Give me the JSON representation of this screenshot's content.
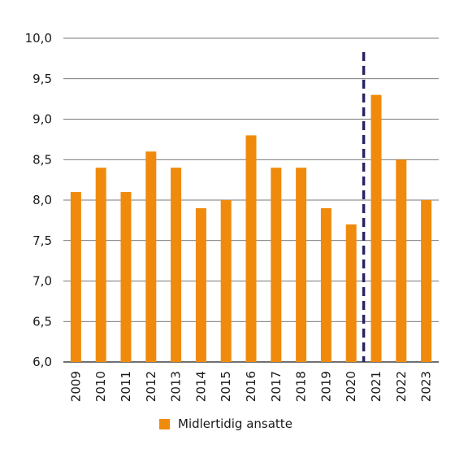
{
  "chart_data": {
    "type": "bar",
    "categories": [
      "2009",
      "2010",
      "2011",
      "2012",
      "2013",
      "2014",
      "2015",
      "2016",
      "2017",
      "2018",
      "2019",
      "2020",
      "2021",
      "2022",
      "2023"
    ],
    "series": [
      {
        "name": "Midlertidig ansatte",
        "values": [
          8.1,
          8.4,
          8.1,
          8.6,
          8.4,
          7.9,
          8.0,
          8.8,
          8.4,
          8.4,
          7.9,
          7.7,
          9.3,
          8.5,
          8.0
        ]
      }
    ],
    "ylim": [
      6.0,
      10.0
    ],
    "yticks": [
      "6,0",
      "6,5",
      "7,0",
      "7,5",
      "8,0",
      "8,5",
      "9,0",
      "9,5",
      "10,0"
    ],
    "ytick_values": [
      6.0,
      6.5,
      7.0,
      7.5,
      8.0,
      8.5,
      9.0,
      9.5,
      10.0
    ],
    "grid": true,
    "legend_position": "bottom",
    "divider_between": [
      "2020",
      "2021"
    ],
    "colors": {
      "bar": "#f08a0c",
      "divider": "#2a2560",
      "grid": "#4d4d4d",
      "axis": "#1a1a1a"
    }
  }
}
